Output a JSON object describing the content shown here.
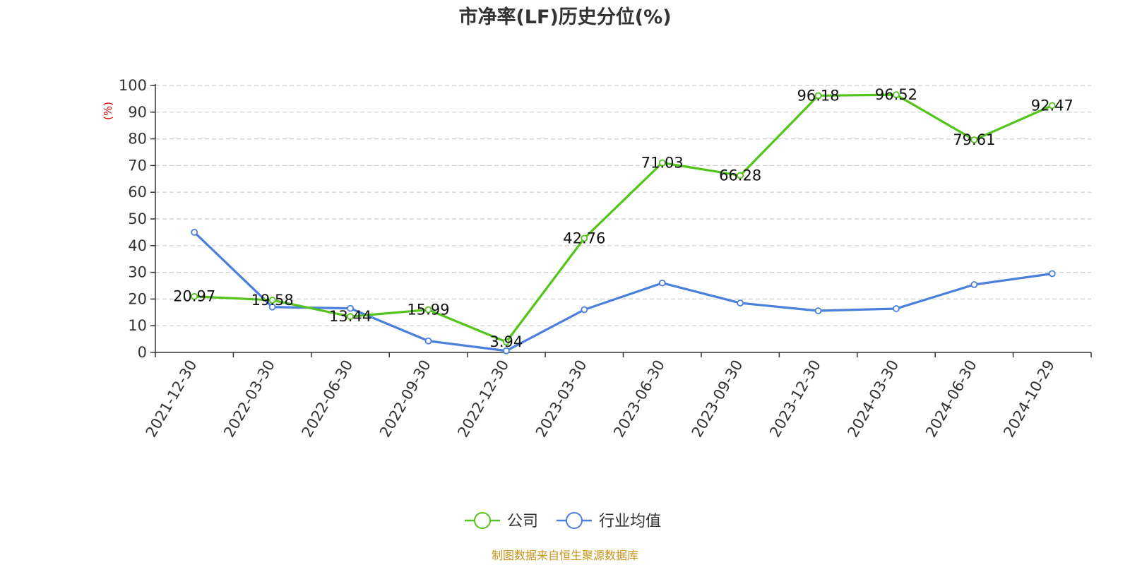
{
  "chart_data": {
    "type": "line",
    "title": "市净率(LF)历史分位(%)",
    "ylabel": "(%)",
    "ylim": [
      0,
      100
    ],
    "yticks": [
      0,
      10,
      20,
      30,
      40,
      50,
      60,
      70,
      80,
      90,
      100
    ],
    "grid": true,
    "legend_position": "bottom",
    "categories": [
      "2021-12-30",
      "2022-03-30",
      "2022-06-30",
      "2022-09-30",
      "2022-12-30",
      "2023-03-30",
      "2023-06-30",
      "2023-09-30",
      "2023-12-30",
      "2024-03-30",
      "2024-06-30",
      "2024-10-29"
    ],
    "series": [
      {
        "name": "公司",
        "color": "#52c41a",
        "show_labels": true,
        "values": [
          20.97,
          19.58,
          13.44,
          15.99,
          3.94,
          42.76,
          71.03,
          66.28,
          96.18,
          96.52,
          79.61,
          92.47
        ]
      },
      {
        "name": "行业均值",
        "color": "#4a7fdc",
        "show_labels": false,
        "values": [
          45.0,
          17.0,
          16.5,
          4.3,
          0.6,
          16.0,
          26.0,
          18.5,
          15.6,
          16.4,
          25.4,
          29.5
        ]
      }
    ],
    "source": "制图数据来自恒生聚源数据库"
  }
}
